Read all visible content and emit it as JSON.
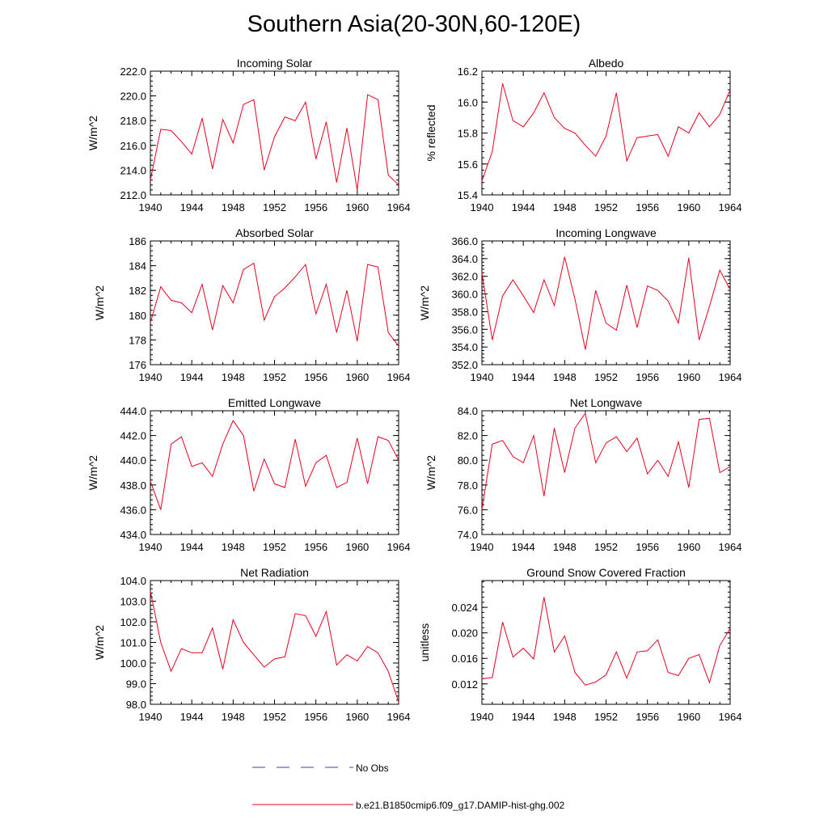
{
  "title": "Southern Asia(20-30N,60-120E)",
  "colors": {
    "model": "#e8001c",
    "obs": "#3b3bd6",
    "axis": "#000000"
  },
  "legend": [
    {
      "label": "No Obs",
      "style": "dashed",
      "color": "#3b3bd6"
    },
    {
      "label": "b.e21.B1850cmip6.f09_g17.DAMIP-hist-ghg.002",
      "style": "solid",
      "color": "#e8001c"
    }
  ],
  "chart_data": [
    {
      "type": "line",
      "title": "Incoming Solar",
      "ylabel": "W/m^2",
      "xlim": [
        1940,
        1964
      ],
      "ylim": [
        212,
        222
      ],
      "xticks": [
        1940,
        1944,
        1948,
        1952,
        1956,
        1960,
        1964
      ],
      "yticks": [
        212,
        214,
        216,
        218,
        220,
        222
      ],
      "ytick_labels": [
        "212.0",
        "214.0",
        "216.0",
        "218.0",
        "220.0",
        "222.0"
      ],
      "grid": false,
      "x": [
        1940,
        1941,
        1942,
        1943,
        1944,
        1945,
        1946,
        1947,
        1948,
        1949,
        1950,
        1951,
        1952,
        1953,
        1954,
        1955,
        1956,
        1957,
        1958,
        1959,
        1960,
        1961,
        1962,
        1963,
        1964
      ],
      "series": [
        {
          "name": "b.e21.B1850cmip6.f09_g17.DAMIP-hist-ghg.002",
          "values": [
            213.2,
            217.3,
            217.2,
            216.3,
            215.3,
            218.2,
            214.1,
            218.1,
            216.2,
            219.3,
            219.7,
            214.0,
            216.7,
            218.3,
            218.0,
            219.5,
            214.9,
            217.9,
            213.0,
            217.4,
            212.4,
            220.1,
            219.7,
            213.6,
            212.8
          ]
        }
      ]
    },
    {
      "type": "line",
      "title": "Albedo",
      "ylabel": "% reflected",
      "xlim": [
        1940,
        1964
      ],
      "ylim": [
        15.4,
        16.2
      ],
      "xticks": [
        1940,
        1944,
        1948,
        1952,
        1956,
        1960,
        1964
      ],
      "yticks": [
        15.4,
        15.6,
        15.8,
        16.0,
        16.2
      ],
      "ytick_labels": [
        "15.4",
        "15.6",
        "15.8",
        "16.0",
        "16.2"
      ],
      "grid": false,
      "x": [
        1940,
        1941,
        1942,
        1943,
        1944,
        1945,
        1946,
        1947,
        1948,
        1949,
        1950,
        1951,
        1952,
        1953,
        1954,
        1955,
        1956,
        1957,
        1958,
        1959,
        1960,
        1961,
        1962,
        1963,
        1964
      ],
      "series": [
        {
          "name": "b.e21.B1850cmip6.f09_g17.DAMIP-hist-ghg.002",
          "values": [
            15.49,
            15.68,
            16.12,
            15.88,
            15.84,
            15.93,
            16.06,
            15.9,
            15.83,
            15.8,
            15.72,
            15.65,
            15.78,
            16.06,
            15.62,
            15.77,
            15.78,
            15.79,
            15.65,
            15.84,
            15.8,
            15.93,
            15.84,
            15.92,
            16.08
          ]
        }
      ]
    },
    {
      "type": "line",
      "title": "Absorbed Solar",
      "ylabel": "W/m^2",
      "xlim": [
        1940,
        1964
      ],
      "ylim": [
        176,
        186
      ],
      "xticks": [
        1940,
        1944,
        1948,
        1952,
        1956,
        1960,
        1964
      ],
      "yticks": [
        176,
        178,
        180,
        182,
        184,
        186
      ],
      "ytick_labels": [
        "176",
        "178",
        "180",
        "182",
        "184",
        "186"
      ],
      "grid": false,
      "x": [
        1940,
        1941,
        1942,
        1943,
        1944,
        1945,
        1946,
        1947,
        1948,
        1949,
        1950,
        1951,
        1952,
        1953,
        1954,
        1955,
        1956,
        1957,
        1958,
        1959,
        1960,
        1961,
        1962,
        1963,
        1964
      ],
      "series": [
        {
          "name": "b.e21.B1850cmip6.f09_g17.DAMIP-hist-ghg.002",
          "values": [
            179.4,
            182.3,
            181.2,
            181.0,
            180.2,
            182.5,
            178.8,
            182.4,
            181.0,
            183.7,
            184.2,
            179.6,
            181.5,
            182.2,
            183.1,
            184.1,
            180.1,
            182.5,
            178.6,
            182.0,
            177.9,
            184.1,
            183.9,
            178.6,
            177.5
          ]
        }
      ]
    },
    {
      "type": "line",
      "title": "Incoming Longwave",
      "ylabel": "W/m^2",
      "xlim": [
        1940,
        1964
      ],
      "ylim": [
        352,
        366
      ],
      "xticks": [
        1940,
        1944,
        1948,
        1952,
        1956,
        1960,
        1964
      ],
      "yticks": [
        352,
        354,
        356,
        358,
        360,
        362,
        364,
        366
      ],
      "ytick_labels": [
        "352.0",
        "354.0",
        "356.0",
        "358.0",
        "360.0",
        "362.0",
        "364.0",
        "366.0"
      ],
      "grid": false,
      "x": [
        1940,
        1941,
        1942,
        1943,
        1944,
        1945,
        1946,
        1947,
        1948,
        1949,
        1950,
        1951,
        1952,
        1953,
        1954,
        1955,
        1956,
        1957,
        1958,
        1959,
        1960,
        1961,
        1962,
        1963,
        1964
      ],
      "series": [
        {
          "name": "b.e21.B1850cmip6.f09_g17.DAMIP-hist-ghg.002",
          "values": [
            362.4,
            354.8,
            359.8,
            361.6,
            359.8,
            357.9,
            361.6,
            358.7,
            364.2,
            359.4,
            353.7,
            360.4,
            356.7,
            355.9,
            361.0,
            356.2,
            360.9,
            360.4,
            359.2,
            356.7,
            364.1,
            354.8,
            358.6,
            362.7,
            360.5
          ]
        }
      ]
    },
    {
      "type": "line",
      "title": "Emitted Longwave",
      "ylabel": "W/m^2",
      "xlim": [
        1940,
        1964
      ],
      "ylim": [
        434,
        444
      ],
      "xticks": [
        1940,
        1944,
        1948,
        1952,
        1956,
        1960,
        1964
      ],
      "yticks": [
        434,
        436,
        438,
        440,
        442,
        444
      ],
      "ytick_labels": [
        "434.0",
        "436.0",
        "438.0",
        "440.0",
        "442.0",
        "444.0"
      ],
      "grid": false,
      "x": [
        1940,
        1941,
        1942,
        1943,
        1944,
        1945,
        1946,
        1947,
        1948,
        1949,
        1950,
        1951,
        1952,
        1953,
        1954,
        1955,
        1956,
        1957,
        1958,
        1959,
        1960,
        1961,
        1962,
        1963,
        1964
      ],
      "series": [
        {
          "name": "b.e21.B1850cmip6.f09_g17.DAMIP-hist-ghg.002",
          "values": [
            438.3,
            436.0,
            441.3,
            441.9,
            439.5,
            439.8,
            438.7,
            441.3,
            443.2,
            442.0,
            437.5,
            440.1,
            438.1,
            437.8,
            441.7,
            437.9,
            439.8,
            440.4,
            437.8,
            438.2,
            441.8,
            438.1,
            441.9,
            441.6,
            440.0
          ]
        }
      ]
    },
    {
      "type": "line",
      "title": "Net Longwave",
      "ylabel": "W/m^2",
      "xlim": [
        1940,
        1964
      ],
      "ylim": [
        74,
        84
      ],
      "xticks": [
        1940,
        1944,
        1948,
        1952,
        1956,
        1960,
        1964
      ],
      "yticks": [
        74,
        76,
        78,
        80,
        82,
        84
      ],
      "ytick_labels": [
        "74.0",
        "76.0",
        "78.0",
        "80.0",
        "82.0",
        "84.0"
      ],
      "grid": false,
      "x": [
        1940,
        1941,
        1942,
        1943,
        1944,
        1945,
        1946,
        1947,
        1948,
        1949,
        1950,
        1951,
        1952,
        1953,
        1954,
        1955,
        1956,
        1957,
        1958,
        1959,
        1960,
        1961,
        1962,
        1963,
        1964
      ],
      "series": [
        {
          "name": "b.e21.B1850cmip6.f09_g17.DAMIP-hist-ghg.002",
          "values": [
            76.0,
            81.3,
            81.6,
            80.3,
            79.8,
            82.0,
            77.1,
            82.6,
            79.0,
            82.6,
            83.8,
            79.8,
            81.4,
            81.9,
            80.7,
            81.8,
            78.9,
            80.0,
            78.7,
            81.5,
            77.8,
            83.3,
            83.4,
            79.0,
            79.5
          ]
        }
      ]
    },
    {
      "type": "line",
      "title": "Net Radiation",
      "ylabel": "W/m^2",
      "xlim": [
        1940,
        1964
      ],
      "ylim": [
        98,
        104
      ],
      "xticks": [
        1940,
        1944,
        1948,
        1952,
        1956,
        1960,
        1964
      ],
      "yticks": [
        98,
        99,
        100,
        101,
        102,
        103,
        104
      ],
      "ytick_labels": [
        "98.0",
        "99.0",
        "100.0",
        "101.0",
        "102.0",
        "103.0",
        "104.0"
      ],
      "grid": false,
      "x": [
        1940,
        1941,
        1942,
        1943,
        1944,
        1945,
        1946,
        1947,
        1948,
        1949,
        1950,
        1951,
        1952,
        1953,
        1954,
        1955,
        1956,
        1957,
        1958,
        1959,
        1960,
        1961,
        1962,
        1963,
        1964
      ],
      "series": [
        {
          "name": "b.e21.B1850cmip6.f09_g17.DAMIP-hist-ghg.002",
          "values": [
            103.5,
            101.0,
            99.6,
            100.7,
            100.5,
            100.5,
            101.7,
            99.7,
            102.1,
            101.0,
            100.4,
            99.8,
            100.2,
            100.3,
            102.4,
            102.3,
            101.3,
            102.5,
            99.9,
            100.4,
            100.1,
            100.8,
            100.5,
            99.6,
            98.1
          ]
        }
      ]
    },
    {
      "type": "line",
      "title": "Ground Snow Covered Fraction",
      "ylabel": "unitless",
      "xlim": [
        1940,
        1964
      ],
      "ylim": [
        0.0088,
        0.0282
      ],
      "xticks": [
        1940,
        1944,
        1948,
        1952,
        1956,
        1960,
        1964
      ],
      "yticks": [
        0.012,
        0.016,
        0.02,
        0.024
      ],
      "ytick_labels": [
        "0.012",
        "0.016",
        "0.020",
        "0.024"
      ],
      "grid": false,
      "x": [
        1940,
        1941,
        1942,
        1943,
        1944,
        1945,
        1946,
        1947,
        1948,
        1949,
        1950,
        1951,
        1952,
        1953,
        1954,
        1955,
        1956,
        1957,
        1958,
        1959,
        1960,
        1961,
        1962,
        1963,
        1964
      ],
      "series": [
        {
          "name": "b.e21.B1850cmip6.f09_g17.DAMIP-hist-ghg.002",
          "values": [
            0.0128,
            0.013,
            0.0217,
            0.0162,
            0.0176,
            0.0159,
            0.0256,
            0.017,
            0.0195,
            0.0138,
            0.0118,
            0.0123,
            0.0134,
            0.017,
            0.0129,
            0.017,
            0.0172,
            0.0189,
            0.0138,
            0.0133,
            0.016,
            0.0166,
            0.0122,
            0.018,
            0.0207
          ]
        }
      ]
    }
  ]
}
